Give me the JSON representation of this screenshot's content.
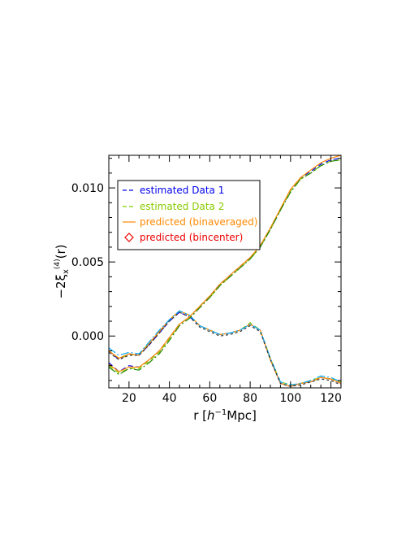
{
  "chart_data": {
    "type": "line",
    "xlabel_main": "r  [",
    "xlabel_unit_h": "h",
    "xlabel_unit_exp": "−1",
    "xlabel_unit_rest": "Mpc]",
    "ylabel_main": "−2ξ",
    "ylabel_sub": "x",
    "ylabel_sup": "(4)",
    "ylabel_tail": "(r)",
    "xlim": [
      10,
      125
    ],
    "ylim": [
      -0.0035,
      0.0122
    ],
    "xticks": [
      20,
      40,
      60,
      80,
      100,
      120
    ],
    "xtick_labels": [
      "20",
      "40",
      "60",
      "80",
      "100",
      "120"
    ],
    "yticks": [
      0.0,
      0.005,
      0.01
    ],
    "ytick_labels": [
      "0.000",
      "0.005",
      "0.010"
    ],
    "grid": false,
    "legend_position": "top-left",
    "legend": [
      {
        "label": "estimated  Data  1",
        "color": "#0000ee",
        "style": "dashed"
      },
      {
        "label": "estimated  Data  2",
        "color": "#88cc00",
        "style": "dashed"
      },
      {
        "label": "predicted  (binaveraged)",
        "color": "#ff8800",
        "style": "solid"
      },
      {
        "label": "predicted  (bincenter)",
        "color": "#ee0000",
        "style": "diamond"
      }
    ],
    "x": [
      10,
      15,
      20,
      25,
      30,
      35,
      40,
      45,
      50,
      55,
      60,
      65,
      70,
      75,
      80,
      85,
      90,
      95,
      100,
      105,
      110,
      115,
      120,
      125
    ],
    "series": [
      {
        "name": "estimated  Data  1",
        "color": "#0000ee",
        "dash": "6,4",
        "values": [
          -0.001,
          -0.0016,
          -0.0012,
          -0.0013,
          -0.0006,
          0.0002,
          0.001,
          0.0016,
          0.0013,
          0.0007,
          0.0004,
          0.0001,
          0.0002,
          0.0004,
          0.0008,
          0.0004,
          -0.0016,
          -0.0032,
          -0.0034,
          -0.0032,
          -0.0031,
          -0.0028,
          -0.0029,
          -0.0032
        ]
      },
      {
        "name": "estimated  Data  2",
        "color": "#88cc00",
        "dash": "6,4",
        "values": [
          -0.001,
          -0.0015,
          -0.0013,
          -0.0012,
          -0.0005,
          0.0003,
          0.0011,
          0.0017,
          0.0014,
          0.0007,
          0.0004,
          0.0001,
          0.0002,
          0.0004,
          0.0009,
          0.0004,
          -0.0015,
          -0.0031,
          -0.0033,
          -0.0032,
          -0.003,
          -0.0028,
          -0.0029,
          -0.0031
        ]
      },
      {
        "name": "predicted  (binaveraged)",
        "color": "#ff8800",
        "dash": "",
        "values": [
          -0.001,
          -0.0015,
          -0.0012,
          -0.0013,
          -0.0005,
          0.0003,
          0.0011,
          0.0017,
          0.0014,
          0.0007,
          0.0004,
          0.0001,
          0.0002,
          0.0004,
          0.0008,
          0.0004,
          -0.0016,
          -0.0032,
          -0.0034,
          -0.0032,
          -0.0031,
          -0.0028,
          -0.0029,
          -0.0032
        ]
      },
      {
        "color": "#00aaff",
        "dash": "10,3,2,3",
        "values": [
          -0.0008,
          -0.0013,
          -0.0011,
          -0.0012,
          -0.0004,
          0.0004,
          0.0011,
          0.0017,
          0.0014,
          0.0007,
          0.0004,
          0.0001,
          0.0002,
          0.0004,
          0.0008,
          0.0004,
          -0.0015,
          -0.0031,
          -0.0033,
          -0.0032,
          -0.003,
          -0.0027,
          -0.0028,
          -0.0031
        ]
      },
      {
        "color": "#333333",
        "dash": "3,3",
        "values": [
          -0.0011,
          -0.0016,
          -0.0013,
          -0.0013,
          -0.0006,
          0.0002,
          0.001,
          0.0016,
          0.0013,
          0.0006,
          0.0003,
          0.0,
          0.0001,
          0.0003,
          0.0007,
          0.0003,
          -0.0016,
          -0.0032,
          -0.0034,
          -0.0033,
          -0.0031,
          -0.0029,
          -0.003,
          -0.0033
        ]
      },
      {
        "name": "estimated  Data  1",
        "color": "#0000ee",
        "dash": "6,4",
        "values": [
          -0.0018,
          -0.0024,
          -0.002,
          -0.0021,
          -0.0016,
          -0.001,
          -0.0001,
          0.0008,
          0.0013,
          0.002,
          0.0027,
          0.0035,
          0.0041,
          0.0047,
          0.0053,
          0.006,
          0.0072,
          0.0085,
          0.0098,
          0.0107,
          0.0111,
          0.0116,
          0.0119,
          0.012
        ]
      },
      {
        "name": "estimated  Data  2",
        "color": "#88cc00",
        "dash": "6,4",
        "values": [
          -0.002,
          -0.0025,
          -0.0022,
          -0.0022,
          -0.0017,
          -0.0011,
          -0.0002,
          0.0008,
          0.0013,
          0.002,
          0.0026,
          0.0034,
          0.004,
          0.0046,
          0.0052,
          0.006,
          0.0072,
          0.0085,
          0.0098,
          0.0106,
          0.011,
          0.0115,
          0.0118,
          0.0119
        ]
      },
      {
        "name": "predicted  (binaveraged)",
        "color": "#ff8800",
        "dash": "",
        "values": [
          -0.0019,
          -0.0024,
          -0.0021,
          -0.0021,
          -0.0016,
          -0.001,
          -0.0001,
          0.0008,
          0.0013,
          0.002,
          0.0027,
          0.0035,
          0.0041,
          0.0047,
          0.0053,
          0.0061,
          0.0073,
          0.0086,
          0.0099,
          0.0107,
          0.0112,
          0.0117,
          0.012,
          0.0122
        ]
      },
      {
        "color": "#228800",
        "dash": "10,3,2,3",
        "values": [
          -0.0021,
          -0.0026,
          -0.0022,
          -0.0023,
          -0.0018,
          -0.0012,
          -0.0003,
          0.0007,
          0.0012,
          0.0019,
          0.0026,
          0.0034,
          0.004,
          0.0046,
          0.0052,
          0.006,
          0.0072,
          0.0085,
          0.0097,
          0.0106,
          0.011,
          0.0115,
          0.0118,
          0.0119
        ]
      }
    ]
  }
}
